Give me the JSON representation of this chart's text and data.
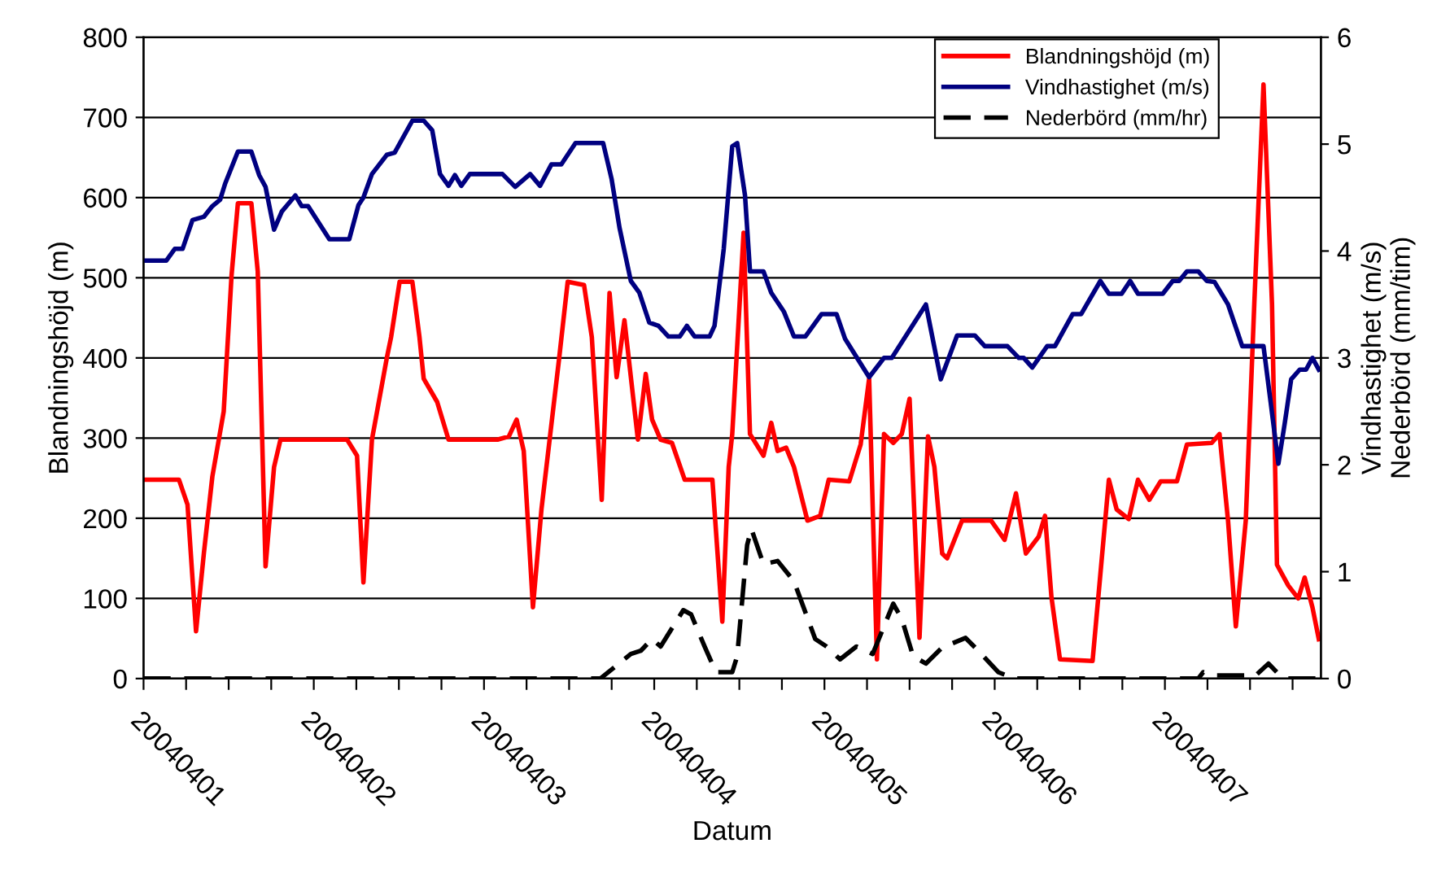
{
  "chart_data": {
    "type": "line",
    "xlabel": "Datum",
    "ylabel": "Blandningshöjd (m)",
    "y2label": "Vindhastighet (m/s)\nNederbörd (mm/tim)",
    "xlim": [
      "2004-04-01T00:00",
      "2004-04-07T22:00"
    ],
    "xticks": [
      {
        "value": "2004-04-01T00:00",
        "label": "20040401"
      },
      {
        "value": "2004-04-01T06:00",
        "label": null
      },
      {
        "value": "2004-04-01T12:00",
        "label": null
      },
      {
        "value": "2004-04-01T18:00",
        "label": null
      },
      {
        "value": "2004-04-02T00:00",
        "label": "20040402"
      },
      {
        "value": "2004-04-02T06:00",
        "label": null
      },
      {
        "value": "2004-04-02T12:00",
        "label": null
      },
      {
        "value": "2004-04-02T18:00",
        "label": null
      },
      {
        "value": "2004-04-03T00:00",
        "label": "20040403"
      },
      {
        "value": "2004-04-03T06:00",
        "label": null
      },
      {
        "value": "2004-04-03T12:00",
        "label": null
      },
      {
        "value": "2004-04-03T18:00",
        "label": null
      },
      {
        "value": "2004-04-04T00:00",
        "label": "20040404"
      },
      {
        "value": "2004-04-04T06:00",
        "label": null
      },
      {
        "value": "2004-04-04T12:00",
        "label": null
      },
      {
        "value": "2004-04-04T18:00",
        "label": null
      },
      {
        "value": "2004-04-05T00:00",
        "label": "20040405"
      },
      {
        "value": "2004-04-05T06:00",
        "label": null
      },
      {
        "value": "2004-04-05T12:00",
        "label": null
      },
      {
        "value": "2004-04-05T18:00",
        "label": null
      },
      {
        "value": "2004-04-06T00:00",
        "label": "20040406"
      },
      {
        "value": "2004-04-06T06:00",
        "label": null
      },
      {
        "value": "2004-04-06T12:00",
        "label": null
      },
      {
        "value": "2004-04-06T18:00",
        "label": null
      },
      {
        "value": "2004-04-07T00:00",
        "label": "20040407"
      },
      {
        "value": "2004-04-07T06:00",
        "label": null
      },
      {
        "value": "2004-04-07T12:00",
        "label": null
      },
      {
        "value": "2004-04-07T18:00",
        "label": null
      }
    ],
    "ylim": [
      0,
      800
    ],
    "yticks": [
      0,
      100,
      200,
      300,
      400,
      500,
      600,
      700,
      800
    ],
    "y2lim": [
      0,
      6
    ],
    "y2ticks": [
      0,
      1,
      2,
      3,
      4,
      5,
      6
    ],
    "grid": "y",
    "legend": "top right",
    "marker": "none",
    "series": [
      {
        "name": "Blandningshöjd (m)",
        "color": "#ff0000",
        "line_style": "solid",
        "x": [
          "2004-04-01T00:00",
          "2004-04-01T05:00",
          "2004-04-01T06:12",
          "2004-04-01T07:24",
          "2004-04-01T08:30",
          "2004-04-01T09:42",
          "2004-04-01T11:18",
          "2004-04-01T12:24",
          "2004-04-01T13:18",
          "2004-04-01T15:12",
          "2004-04-01T16:06",
          "2004-04-01T17:12",
          "2004-04-01T18:24",
          "2004-04-01T19:18",
          "2004-04-02T04:42",
          "2004-04-02T06:06",
          "2004-04-02T07:00",
          "2004-04-02T08:12",
          "2004-04-02T10:18",
          "2004-04-02T10:54",
          "2004-04-02T12:06",
          "2004-04-02T13:54",
          "2004-04-02T14:54",
          "2004-04-02T15:30",
          "2004-04-02T17:24",
          "2004-04-02T19:00",
          "2004-04-03T01:54",
          "2004-04-03T03:30",
          "2004-04-03T04:36",
          "2004-04-03T05:36",
          "2004-04-03T06:54",
          "2004-04-03T08:06",
          "2004-04-03T10:36",
          "2004-04-03T11:48",
          "2004-04-03T14:06",
          "2004-04-03T15:12",
          "2004-04-03T16:36",
          "2004-04-03T17:42",
          "2004-04-03T18:42",
          "2004-04-03T19:48",
          "2004-04-03T21:42",
          "2004-04-03T22:48",
          "2004-04-03T23:42",
          "2004-04-04T00:54",
          "2004-04-04T02:30",
          "2004-04-04T04:18",
          "2004-04-04T08:12",
          "2004-04-04T09:36",
          "2004-04-04T10:30",
          "2004-04-04T11:00",
          "2004-04-04T12:36",
          "2004-04-04T13:30",
          "2004-04-04T15:24",
          "2004-04-04T16:30",
          "2004-04-04T17:24",
          "2004-04-04T18:36",
          "2004-04-04T19:42",
          "2004-04-04T21:36",
          "2004-04-04T23:24",
          "2004-04-05T00:36",
          "2004-04-05T03:30",
          "2004-04-05T05:06",
          "2004-04-05T06:18",
          "2004-04-05T07:24",
          "2004-04-05T08:24",
          "2004-04-05T09:42",
          "2004-04-05T10:54",
          "2004-04-05T12:00",
          "2004-04-05T13:24",
          "2004-04-05T14:36",
          "2004-04-05T15:30",
          "2004-04-05T16:36",
          "2004-04-05T17:18",
          "2004-04-05T19:24",
          "2004-04-05T23:30",
          "2004-04-06T01:24",
          "2004-04-06T03:00",
          "2004-04-06T04:24",
          "2004-04-06T06:12",
          "2004-04-06T07:06",
          "2004-04-06T08:00",
          "2004-04-06T09:12",
          "2004-04-06T13:48",
          "2004-04-06T14:54",
          "2004-04-06T16:06",
          "2004-04-06T17:12",
          "2004-04-06T18:54",
          "2004-04-06T20:12",
          "2004-04-06T21:48",
          "2004-04-06T23:24",
          "2004-04-07T01:42",
          "2004-04-07T03:06",
          "2004-04-07T06:36",
          "2004-04-07T07:42",
          "2004-04-07T08:54",
          "2004-04-07T10:00",
          "2004-04-07T11:24",
          "2004-04-07T12:36",
          "2004-04-07T13:54",
          "2004-04-07T15:06",
          "2004-04-07T15:48",
          "2004-04-07T17:24",
          "2004-04-07T18:48",
          "2004-04-07T19:42",
          "2004-04-07T20:48",
          "2004-04-07T21:42"
        ],
        "values": [
          248,
          248,
          217,
          59,
          156,
          252,
          333,
          502,
          593,
          593,
          508,
          140,
          264,
          298,
          298,
          278,
          120,
          298,
          400,
          426,
          495,
          495,
          426,
          374,
          345,
          298,
          298,
          302,
          323,
          284,
          89,
          211,
          400,
          495,
          491,
          426,
          223,
          481,
          376,
          447,
          298,
          380,
          323,
          298,
          294,
          248,
          248,
          71,
          264,
          305,
          556,
          305,
          278,
          319,
          284,
          288,
          264,
          197,
          203,
          248,
          246,
          292,
          374,
          24,
          305,
          294,
          305,
          349,
          51,
          302,
          264,
          156,
          150,
          197,
          197,
          173,
          231,
          156,
          177,
          203,
          102,
          24,
          22,
          130,
          248,
          211,
          199,
          248,
          223,
          246,
          246,
          292,
          294,
          305,
          197,
          65,
          197,
          467,
          741,
          467,
          142,
          116,
          100,
          126,
          89,
          49
        ]
      },
      {
        "name": "Vindhastighet (m/s)",
        "color": "#000080",
        "axis": "y2",
        "line_style": "solid",
        "x": [
          "2004-04-01T00:00",
          "2004-04-01T03:12",
          "2004-04-01T04:24",
          "2004-04-01T05:30",
          "2004-04-01T06:54",
          "2004-04-01T08:30",
          "2004-04-01T09:42",
          "2004-04-01T10:48",
          "2004-04-01T11:30",
          "2004-04-01T13:18",
          "2004-04-01T15:12",
          "2004-04-01T16:18",
          "2004-04-01T17:12",
          "2004-04-01T18:24",
          "2004-04-01T19:30",
          "2004-04-01T21:24",
          "2004-04-01T22:18",
          "2004-04-01T23:12",
          "2004-04-02T02:12",
          "2004-04-02T05:00",
          "2004-04-02T06:18",
          "2004-04-02T07:00",
          "2004-04-02T08:12",
          "2004-04-02T10:18",
          "2004-04-02T11:24",
          "2004-04-02T13:54",
          "2004-04-02T15:30",
          "2004-04-02T16:42",
          "2004-04-02T17:48",
          "2004-04-02T19:00",
          "2004-04-02T19:54",
          "2004-04-02T20:48",
          "2004-04-02T22:00",
          "2004-04-03T02:36",
          "2004-04-03T04:24",
          "2004-04-03T06:30",
          "2004-04-03T07:54",
          "2004-04-03T09:30",
          "2004-04-03T10:54",
          "2004-04-03T12:54",
          "2004-04-03T16:48",
          "2004-04-03T18:00",
          "2004-04-03T19:06",
          "2004-04-03T20:42",
          "2004-04-03T21:54",
          "2004-04-03T23:18",
          "2004-04-04T00:36",
          "2004-04-04T02:00",
          "2004-04-04T03:36",
          "2004-04-04T04:36",
          "2004-04-04T05:42",
          "2004-04-04T07:48",
          "2004-04-04T08:30",
          "2004-04-04T09:48",
          "2004-04-04T11:00",
          "2004-04-04T11:42",
          "2004-04-04T12:48",
          "2004-04-04T13:30",
          "2004-04-04T15:24",
          "2004-04-04T16:30",
          "2004-04-04T18:18",
          "2004-04-04T19:42",
          "2004-04-04T21:18",
          "2004-04-04T23:36",
          "2004-04-05T01:42",
          "2004-04-05T02:54",
          "2004-04-05T06:18",
          "2004-04-05T08:24",
          "2004-04-05T09:30",
          "2004-04-05T14:18",
          "2004-04-05T16:24",
          "2004-04-05T18:42",
          "2004-04-05T21:12",
          "2004-04-05T22:36",
          "2004-04-06T01:48",
          "2004-04-06T03:24",
          "2004-04-06T04:06",
          "2004-04-06T05:18",
          "2004-04-06T07:24",
          "2004-04-06T08:30",
          "2004-04-06T11:00",
          "2004-04-06T12:12",
          "2004-04-06T14:54",
          "2004-04-06T16:06",
          "2004-04-06T17:54",
          "2004-04-06T19:06",
          "2004-04-06T20:12",
          "2004-04-06T23:42",
          "2004-04-07T01:06",
          "2004-04-07T02:00",
          "2004-04-07T03:06",
          "2004-04-07T04:42",
          "2004-04-07T05:54",
          "2004-04-07T07:00",
          "2004-04-07T08:54",
          "2004-04-07T10:54",
          "2004-04-07T13:54",
          "2004-04-07T14:54",
          "2004-04-07T16:00",
          "2004-04-07T16:54",
          "2004-04-07T17:48",
          "2004-04-07T19:00",
          "2004-04-07T19:54",
          "2004-04-07T20:48",
          "2004-04-07T21:42"
        ],
        "values": [
          3.91,
          3.91,
          4.02,
          4.02,
          4.29,
          4.32,
          4.42,
          4.48,
          4.63,
          4.93,
          4.93,
          4.71,
          4.6,
          4.2,
          4.37,
          4.52,
          4.42,
          4.42,
          4.11,
          4.11,
          4.43,
          4.5,
          4.72,
          4.9,
          4.92,
          5.22,
          5.22,
          5.13,
          4.72,
          4.61,
          4.71,
          4.61,
          4.72,
          4.72,
          4.6,
          4.72,
          4.61,
          4.81,
          4.81,
          5.01,
          5.01,
          4.67,
          4.22,
          3.72,
          3.61,
          3.33,
          3.3,
          3.2,
          3.2,
          3.3,
          3.2,
          3.2,
          3.3,
          4.02,
          4.98,
          5.01,
          4.52,
          3.81,
          3.81,
          3.61,
          3.43,
          3.2,
          3.2,
          3.41,
          3.41,
          3.18,
          2.82,
          3.0,
          3.0,
          3.5,
          2.8,
          3.21,
          3.21,
          3.11,
          3.11,
          3.0,
          3.0,
          2.91,
          3.11,
          3.11,
          3.41,
          3.41,
          3.72,
          3.6,
          3.6,
          3.72,
          3.6,
          3.6,
          3.72,
          3.72,
          3.81,
          3.81,
          3.72,
          3.71,
          3.5,
          3.11,
          3.11,
          2.59,
          2.01,
          2.39,
          2.8,
          2.89,
          2.89,
          3.0,
          2.89
        ]
      },
      {
        "name": "Nederbörd (mm/hr)",
        "color": "#000000",
        "axis": "y2",
        "line_style": "dashed",
        "x": [
          "2004-04-01T00:00",
          "2004-04-03T16:24",
          "2004-04-03T20:42",
          "2004-04-03T22:06",
          "2004-04-03T23:42",
          "2004-04-04T00:54",
          "2004-04-04T04:06",
          "2004-04-04T05:12",
          "2004-04-04T07:06",
          "2004-04-04T08:42",
          "2004-04-04T11:00",
          "2004-04-04T11:42",
          "2004-04-04T13:06",
          "2004-04-04T13:42",
          "2004-04-04T15:24",
          "2004-04-04T17:24",
          "2004-04-04T19:42",
          "2004-04-04T22:42",
          "2004-04-05T00:18",
          "2004-04-05T02:12",
          "2004-04-05T04:30",
          "2004-04-05T06:48",
          "2004-04-05T09:42",
          "2004-04-05T10:54",
          "2004-04-05T12:30",
          "2004-04-05T14:18",
          "2004-04-05T16:36",
          "2004-04-05T19:54",
          "2004-04-05T21:42",
          "2004-04-06T00:30",
          "2004-04-06T02:48",
          "2004-04-07T04:42",
          "2004-04-07T05:24",
          "2004-04-07T07:00",
          "2004-04-07T12:48",
          "2004-04-07T14:36",
          "2004-04-07T16:12",
          "2004-04-07T17:24",
          "2004-04-07T21:42"
        ],
        "values": [
          0,
          0,
          0.23,
          0.26,
          0.37,
          0.3,
          0.64,
          0.6,
          0.3,
          0.06,
          0.06,
          0.21,
          1.25,
          1.4,
          1.07,
          1.1,
          0.91,
          0.37,
          0.3,
          0.18,
          0.3,
          0.23,
          0.7,
          0.56,
          0.21,
          0.14,
          0.29,
          0.38,
          0.26,
          0.06,
          0,
          0,
          0.06,
          0.03,
          0.03,
          0.14,
          0.03,
          0,
          0
        ]
      }
    ]
  }
}
